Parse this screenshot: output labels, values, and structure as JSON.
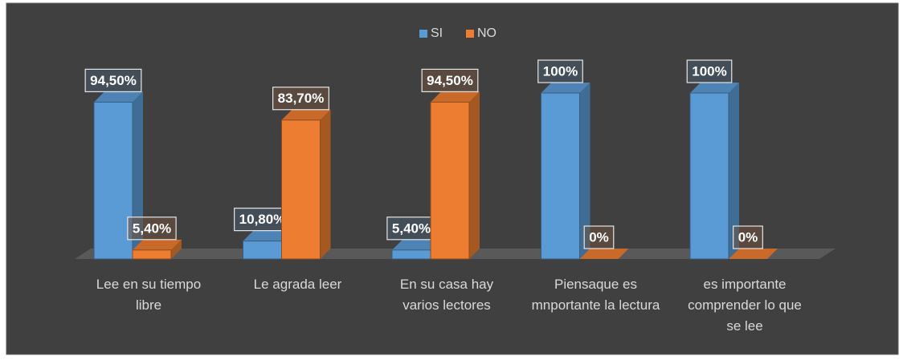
{
  "chart_data": {
    "type": "bar3d",
    "categories": [
      "Lee en su tiempo libre",
      "Le agrada leer",
      "En su casa hay varios lectores",
      "Piensaque es mnportante la lectura",
      "es importante comprender lo que se lee"
    ],
    "series": [
      {
        "name": "SI",
        "color": "#5b9bd5",
        "values": [
          94.5,
          10.8,
          5.4,
          100,
          100
        ],
        "value_labels": [
          "94,50%",
          "10,80%",
          "5,40%",
          "100%",
          "100%"
        ]
      },
      {
        "name": "NO",
        "color": "#ed7d31",
        "values": [
          5.4,
          83.7,
          94.5,
          0,
          0
        ],
        "value_labels": [
          "5,40%",
          "83,70%",
          "94,50%",
          "0%",
          "0%"
        ]
      }
    ],
    "legend": "top"
  }
}
